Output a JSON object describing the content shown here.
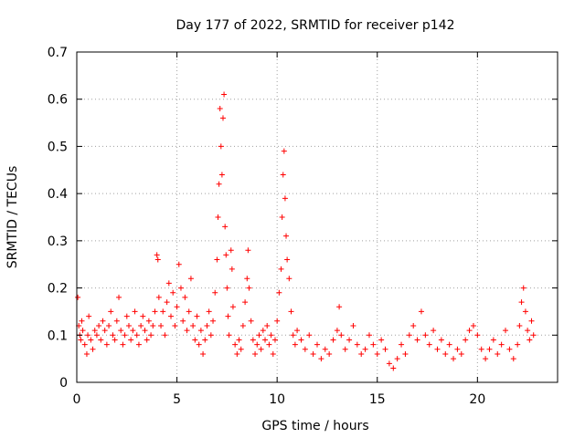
{
  "chart_data": {
    "type": "scatter",
    "title": "Day 177 of 2022, SRMTID for receiver p142",
    "xlabel": "GPS time / hours",
    "ylabel": "SRMTID / TECUs",
    "xlim": [
      0,
      24
    ],
    "ylim": [
      0,
      0.7
    ],
    "x_ticks": [
      0,
      5,
      10,
      15,
      20
    ],
    "y_ticks": [
      0,
      0.1,
      0.2,
      0.3,
      0.4,
      0.5,
      0.6,
      0.7
    ],
    "x_tick_labels": [
      "0",
      "5",
      "10",
      "15",
      "20"
    ],
    "y_tick_labels": [
      "0",
      "0.1",
      "0.2",
      "0.3",
      "0.4",
      "0.5",
      "0.6",
      "0.7"
    ],
    "grid": true,
    "marker": "plus",
    "color": "#ff0000",
    "series": [
      {
        "name": "SRMTID",
        "points": [
          [
            0.05,
            0.18
          ],
          [
            0.1,
            0.12
          ],
          [
            0.15,
            0.1
          ],
          [
            0.2,
            0.09
          ],
          [
            0.25,
            0.13
          ],
          [
            0.3,
            0.11
          ],
          [
            0.4,
            0.08
          ],
          [
            0.5,
            0.06
          ],
          [
            0.55,
            0.1
          ],
          [
            0.6,
            0.14
          ],
          [
            0.7,
            0.09
          ],
          [
            0.8,
            0.07
          ],
          [
            0.9,
            0.11
          ],
          [
            1.0,
            0.1
          ],
          [
            1.1,
            0.12
          ],
          [
            1.2,
            0.09
          ],
          [
            1.3,
            0.13
          ],
          [
            1.4,
            0.11
          ],
          [
            1.5,
            0.08
          ],
          [
            1.6,
            0.12
          ],
          [
            1.7,
            0.15
          ],
          [
            1.8,
            0.1
          ],
          [
            1.9,
            0.09
          ],
          [
            2.0,
            0.13
          ],
          [
            2.1,
            0.18
          ],
          [
            2.2,
            0.11
          ],
          [
            2.3,
            0.08
          ],
          [
            2.4,
            0.1
          ],
          [
            2.5,
            0.14
          ],
          [
            2.6,
            0.12
          ],
          [
            2.7,
            0.09
          ],
          [
            2.8,
            0.11
          ],
          [
            2.9,
            0.15
          ],
          [
            3.0,
            0.1
          ],
          [
            3.1,
            0.08
          ],
          [
            3.2,
            0.12
          ],
          [
            3.3,
            0.14
          ],
          [
            3.4,
            0.11
          ],
          [
            3.5,
            0.09
          ],
          [
            3.6,
            0.13
          ],
          [
            3.7,
            0.1
          ],
          [
            3.8,
            0.12
          ],
          [
            3.9,
            0.15
          ],
          [
            4.0,
            0.27
          ],
          [
            4.05,
            0.26
          ],
          [
            4.1,
            0.18
          ],
          [
            4.2,
            0.12
          ],
          [
            4.3,
            0.15
          ],
          [
            4.4,
            0.1
          ],
          [
            4.5,
            0.17
          ],
          [
            4.6,
            0.21
          ],
          [
            4.7,
            0.14
          ],
          [
            4.8,
            0.19
          ],
          [
            4.9,
            0.12
          ],
          [
            5.0,
            0.16
          ],
          [
            5.1,
            0.25
          ],
          [
            5.2,
            0.2
          ],
          [
            5.3,
            0.13
          ],
          [
            5.4,
            0.18
          ],
          [
            5.5,
            0.11
          ],
          [
            5.6,
            0.15
          ],
          [
            5.7,
            0.22
          ],
          [
            5.8,
            0.12
          ],
          [
            5.9,
            0.09
          ],
          [
            6.0,
            0.14
          ],
          [
            6.1,
            0.08
          ],
          [
            6.2,
            0.11
          ],
          [
            6.3,
            0.06
          ],
          [
            6.4,
            0.09
          ],
          [
            6.5,
            0.12
          ],
          [
            6.6,
            0.15
          ],
          [
            6.7,
            0.1
          ],
          [
            6.8,
            0.13
          ],
          [
            6.9,
            0.19
          ],
          [
            7.0,
            0.26
          ],
          [
            7.05,
            0.35
          ],
          [
            7.1,
            0.42
          ],
          [
            7.15,
            0.58
          ],
          [
            7.2,
            0.5
          ],
          [
            7.25,
            0.44
          ],
          [
            7.3,
            0.56
          ],
          [
            7.35,
            0.61
          ],
          [
            7.4,
            0.33
          ],
          [
            7.45,
            0.27
          ],
          [
            7.5,
            0.2
          ],
          [
            7.55,
            0.14
          ],
          [
            7.6,
            0.1
          ],
          [
            7.7,
            0.28
          ],
          [
            7.75,
            0.24
          ],
          [
            7.8,
            0.16
          ],
          [
            7.9,
            0.08
          ],
          [
            8.0,
            0.06
          ],
          [
            8.1,
            0.09
          ],
          [
            8.2,
            0.07
          ],
          [
            8.3,
            0.12
          ],
          [
            8.4,
            0.17
          ],
          [
            8.5,
            0.22
          ],
          [
            8.55,
            0.28
          ],
          [
            8.6,
            0.2
          ],
          [
            8.7,
            0.13
          ],
          [
            8.8,
            0.09
          ],
          [
            8.9,
            0.06
          ],
          [
            9.0,
            0.08
          ],
          [
            9.1,
            0.1
          ],
          [
            9.2,
            0.07
          ],
          [
            9.3,
            0.11
          ],
          [
            9.4,
            0.09
          ],
          [
            9.5,
            0.12
          ],
          [
            9.6,
            0.08
          ],
          [
            9.7,
            0.1
          ],
          [
            9.8,
            0.06
          ],
          [
            9.9,
            0.09
          ],
          [
            10.0,
            0.13
          ],
          [
            10.1,
            0.19
          ],
          [
            10.2,
            0.24
          ],
          [
            10.25,
            0.35
          ],
          [
            10.3,
            0.44
          ],
          [
            10.35,
            0.49
          ],
          [
            10.4,
            0.39
          ],
          [
            10.45,
            0.31
          ],
          [
            10.5,
            0.26
          ],
          [
            10.6,
            0.22
          ],
          [
            10.7,
            0.15
          ],
          [
            10.8,
            0.1
          ],
          [
            10.9,
            0.08
          ],
          [
            11.0,
            0.11
          ],
          [
            11.2,
            0.09
          ],
          [
            11.4,
            0.07
          ],
          [
            11.6,
            0.1
          ],
          [
            11.8,
            0.06
          ],
          [
            12.0,
            0.08
          ],
          [
            12.2,
            0.05
          ],
          [
            12.4,
            0.07
          ],
          [
            12.6,
            0.06
          ],
          [
            12.8,
            0.09
          ],
          [
            13.0,
            0.11
          ],
          [
            13.1,
            0.16
          ],
          [
            13.2,
            0.1
          ],
          [
            13.4,
            0.07
          ],
          [
            13.6,
            0.09
          ],
          [
            13.8,
            0.12
          ],
          [
            14.0,
            0.08
          ],
          [
            14.2,
            0.06
          ],
          [
            14.4,
            0.07
          ],
          [
            14.6,
            0.1
          ],
          [
            14.8,
            0.08
          ],
          [
            15.0,
            0.06
          ],
          [
            15.2,
            0.09
          ],
          [
            15.4,
            0.07
          ],
          [
            15.6,
            0.04
          ],
          [
            15.8,
            0.03
          ],
          [
            16.0,
            0.05
          ],
          [
            16.2,
            0.08
          ],
          [
            16.4,
            0.06
          ],
          [
            16.6,
            0.1
          ],
          [
            16.8,
            0.12
          ],
          [
            17.0,
            0.09
          ],
          [
            17.2,
            0.15
          ],
          [
            17.4,
            0.1
          ],
          [
            17.6,
            0.08
          ],
          [
            17.8,
            0.11
          ],
          [
            18.0,
            0.07
          ],
          [
            18.2,
            0.09
          ],
          [
            18.4,
            0.06
          ],
          [
            18.6,
            0.08
          ],
          [
            18.8,
            0.05
          ],
          [
            19.0,
            0.07
          ],
          [
            19.2,
            0.06
          ],
          [
            19.4,
            0.09
          ],
          [
            19.6,
            0.11
          ],
          [
            19.8,
            0.12
          ],
          [
            20.0,
            0.1
          ],
          [
            20.2,
            0.07
          ],
          [
            20.4,
            0.05
          ],
          [
            20.6,
            0.07
          ],
          [
            20.8,
            0.09
          ],
          [
            21.0,
            0.06
          ],
          [
            21.2,
            0.08
          ],
          [
            21.4,
            0.11
          ],
          [
            21.6,
            0.07
          ],
          [
            21.8,
            0.05
          ],
          [
            22.0,
            0.08
          ],
          [
            22.1,
            0.12
          ],
          [
            22.2,
            0.17
          ],
          [
            22.3,
            0.2
          ],
          [
            22.4,
            0.15
          ],
          [
            22.5,
            0.11
          ],
          [
            22.6,
            0.09
          ],
          [
            22.7,
            0.13
          ],
          [
            22.8,
            0.1
          ]
        ]
      }
    ]
  }
}
